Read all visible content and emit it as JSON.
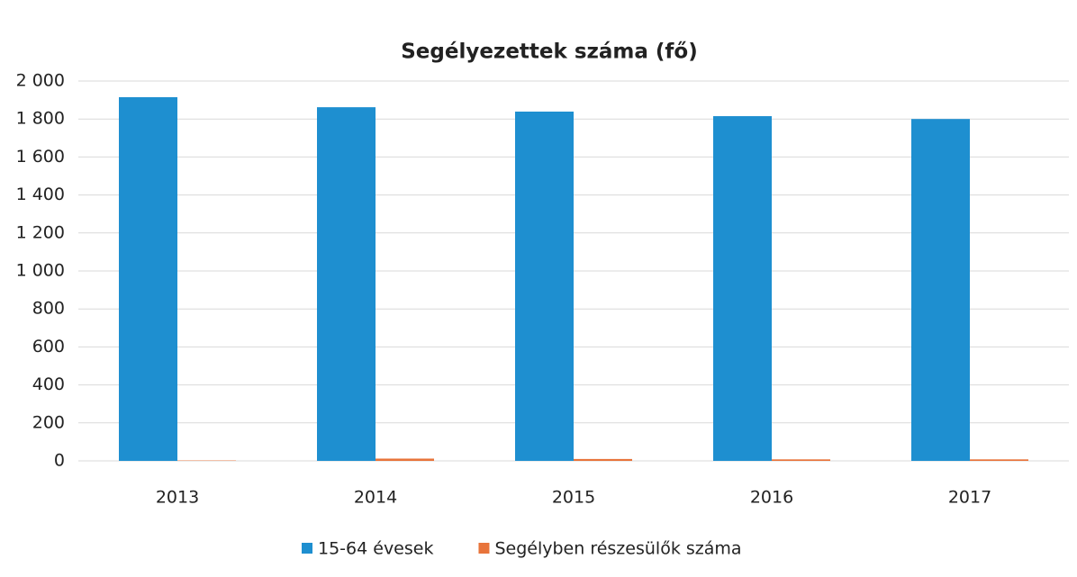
{
  "chart_data": {
    "type": "bar",
    "title": "Segélyezettek száma (fő)",
    "categories": [
      "2013",
      "2014",
      "2015",
      "2016",
      "2017"
    ],
    "series": [
      {
        "name": "15-64 évesek",
        "color": "#1e8fd0",
        "values": [
          1915,
          1862,
          1839,
          1815,
          1800
        ]
      },
      {
        "name": "Segélyben részesülők száma",
        "color": "#e8743b",
        "values": [
          2,
          12,
          10,
          8,
          8
        ]
      }
    ],
    "ylim": [
      0,
      2000
    ],
    "yticks": [
      0,
      200,
      400,
      600,
      800,
      {
        "value": 1000,
        "label": "1 000"
      },
      {
        "value": 1200,
        "label": "1 200"
      },
      {
        "value": 1400,
        "label": "1 400"
      },
      {
        "value": 1600,
        "label": "1 600"
      },
      {
        "value": 1800,
        "label": "1 800"
      },
      {
        "value": 2000,
        "label": "2 000"
      }
    ],
    "grid": true
  }
}
